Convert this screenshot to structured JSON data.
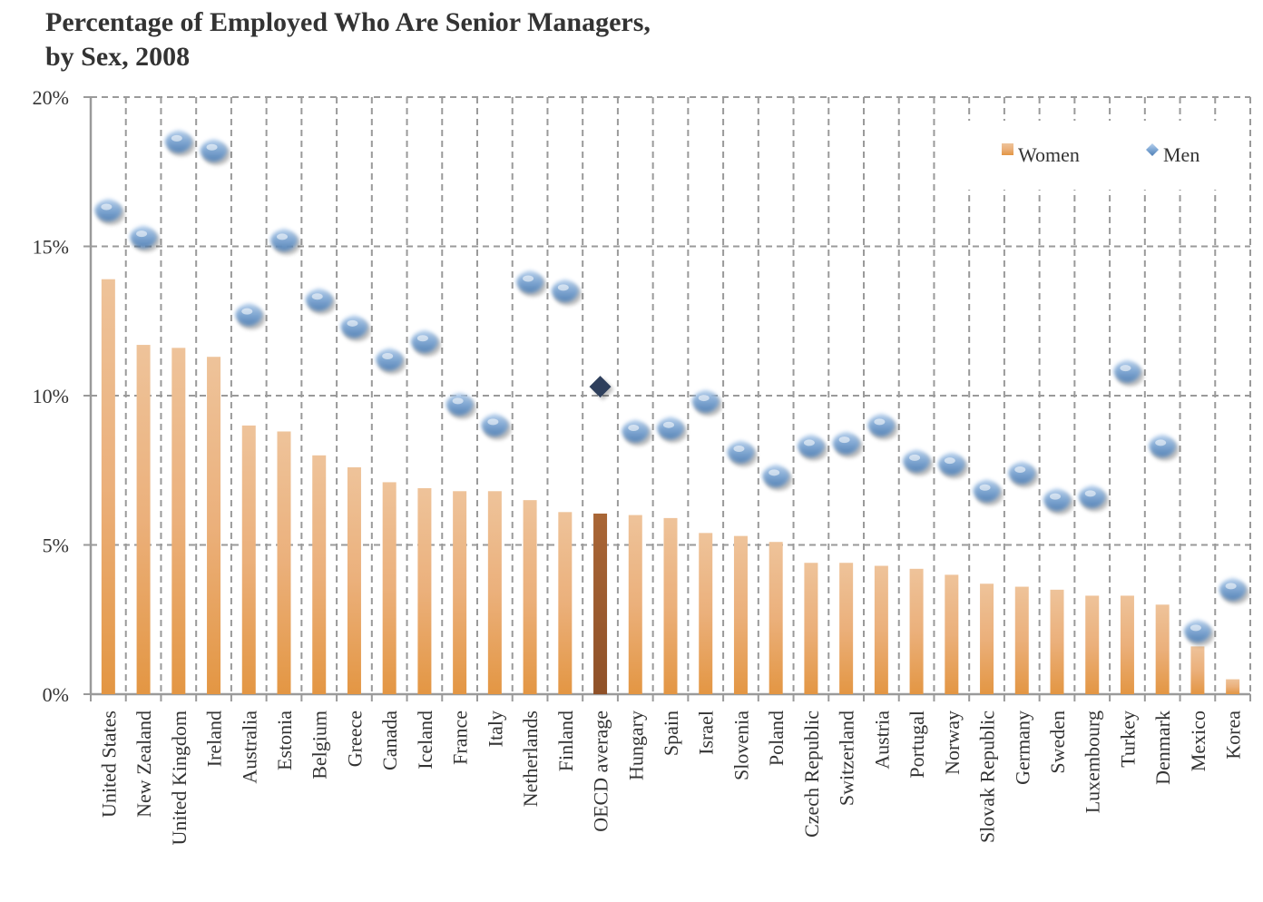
{
  "title_line1": "Percentage of Employed Who Are Senior Managers,",
  "title_line2": "by Sex, 2008",
  "colors": {
    "women_bar": "#e9a25b",
    "women_bar_highlight": "#a96636",
    "men_marker": "#7ea7d4",
    "men_marker_highlight": "#2e3f5c",
    "grid": "#9a9a9a"
  },
  "chart_data": {
    "type": "bar",
    "title": "Percentage of Employed Who Are Senior Managers, by Sex, 2008",
    "categories": [
      "United States",
      "New Zealand",
      "United Kingdom",
      "Ireland",
      "Australia",
      "Estonia",
      "Belgium",
      "Greece",
      "Canada",
      "Iceland",
      "France",
      "Italy",
      "Netherlands",
      "Finland",
      "OECD average",
      "Hungary",
      "Spain",
      "Israel",
      "Slovenia",
      "Poland",
      "Czech Republic",
      "Switzerland",
      "Austria",
      "Portugal",
      "Norway",
      "Slovak Republic",
      "Germany",
      "Sweden",
      "Luxembourg",
      "Turkey",
      "Denmark",
      "Mexico",
      "Korea"
    ],
    "highlight_category": "OECD average",
    "series": [
      {
        "name": "Women",
        "mark": "bar",
        "values": [
          13.9,
          11.7,
          11.6,
          11.3,
          9.0,
          8.8,
          8.0,
          7.6,
          7.1,
          6.9,
          6.8,
          6.8,
          6.5,
          6.1,
          6.05,
          6.0,
          5.9,
          5.4,
          5.3,
          5.1,
          4.4,
          4.4,
          4.3,
          4.2,
          4.0,
          3.7,
          3.6,
          3.5,
          3.3,
          3.3,
          3.0,
          1.6,
          0.5
        ]
      },
      {
        "name": "Men",
        "mark": "diamond",
        "values": [
          16.2,
          15.3,
          18.5,
          18.2,
          12.7,
          15.2,
          13.2,
          12.3,
          11.2,
          11.8,
          9.7,
          9.0,
          13.8,
          13.5,
          10.3,
          8.8,
          8.9,
          9.8,
          8.1,
          7.3,
          8.3,
          8.4,
          9.0,
          7.8,
          7.7,
          6.8,
          7.4,
          6.5,
          6.6,
          10.8,
          8.3,
          2.1,
          3.5
        ]
      }
    ],
    "y_tick_labels": [
      "0%",
      "5%",
      "10%",
      "15%",
      "20%"
    ],
    "y_ticks": [
      0,
      5,
      10,
      15,
      20
    ],
    "ylim": [
      0,
      20
    ],
    "grid": true,
    "legend_position": "top-right"
  }
}
